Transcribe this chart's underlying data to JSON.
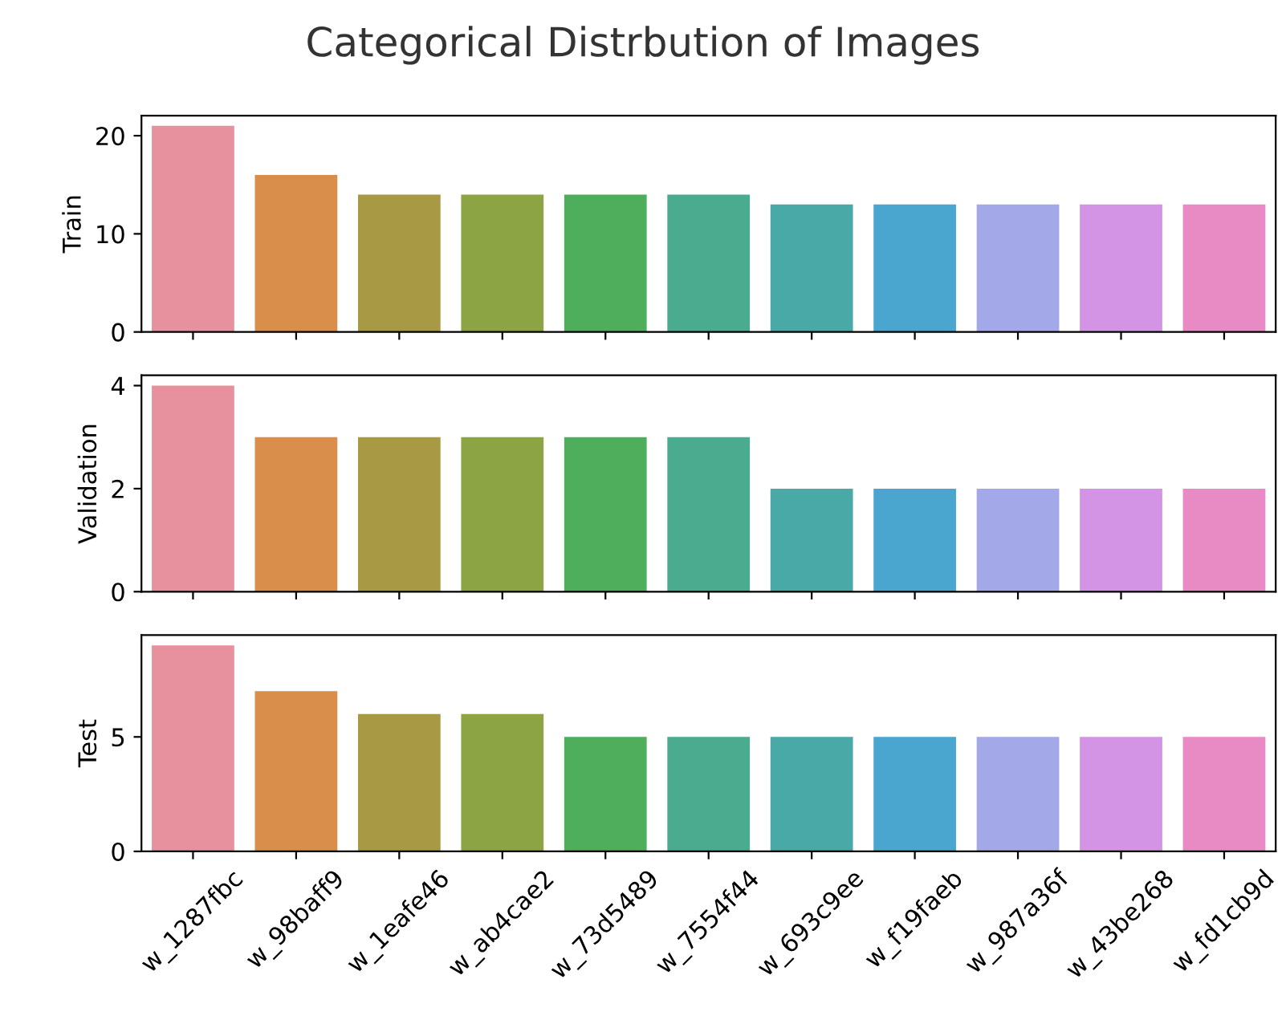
{
  "chart_data": [
    {
      "type": "bar",
      "title": "Categorical Distrbution of Images",
      "ylabel": "Train",
      "categories": [
        null,
        null,
        null,
        null,
        null,
        null,
        null,
        null,
        null,
        null,
        null
      ],
      "values": [
        21,
        16,
        14,
        14,
        14,
        14,
        13,
        13,
        13,
        13,
        13
      ],
      "colors": [
        "#e8919e",
        "#d98f4b",
        "#a89a45",
        "#8ca443",
        "#4fae5c",
        "#4aab8f",
        "#49a9a7",
        "#4ba6cf",
        "#a3a8e8",
        "#d394e6",
        "#e88bc5"
      ],
      "ylim": [
        0,
        22.05
      ],
      "yticks": [
        0,
        10,
        20
      ],
      "tick_labels": "y",
      "grid": false,
      "legend": false
    },
    {
      "type": "bar",
      "ylabel": "Validation",
      "categories": [
        null,
        null,
        null,
        null,
        null,
        null,
        null,
        null,
        null,
        null,
        null
      ],
      "values": [
        4,
        3,
        3,
        3,
        3,
        3,
        2,
        2,
        2,
        2,
        2
      ],
      "colors": [
        "#e8919e",
        "#d98f4b",
        "#a89a45",
        "#8ca443",
        "#4fae5c",
        "#4aab8f",
        "#49a9a7",
        "#4ba6cf",
        "#a3a8e8",
        "#d394e6",
        "#e88bc5"
      ],
      "ylim": [
        0,
        4.2
      ],
      "yticks": [
        0,
        2,
        4
      ],
      "tick_labels": "y",
      "grid": false,
      "legend": false
    },
    {
      "type": "bar",
      "ylabel": "Test",
      "categories": [
        "w_1287fbc",
        "w_98baff9",
        "w_1eafe46",
        "w_ab4cae2",
        "w_73d5489",
        "w_7554f44",
        "w_693c9ee",
        "w_f19faeb",
        "w_987a36f",
        "w_43be268",
        "w_fd1cb9d"
      ],
      "values": [
        9,
        7,
        6,
        6,
        5,
        5,
        5,
        5,
        5,
        5,
        5
      ],
      "colors": [
        "#e8919e",
        "#d98f4b",
        "#a89a45",
        "#8ca443",
        "#4fae5c",
        "#4aab8f",
        "#49a9a7",
        "#4ba6cf",
        "#a3a8e8",
        "#d394e6",
        "#e88bc5"
      ],
      "ylim": [
        0,
        9.45
      ],
      "yticks": [
        0,
        5
      ],
      "grid": false,
      "legend": false
    }
  ]
}
